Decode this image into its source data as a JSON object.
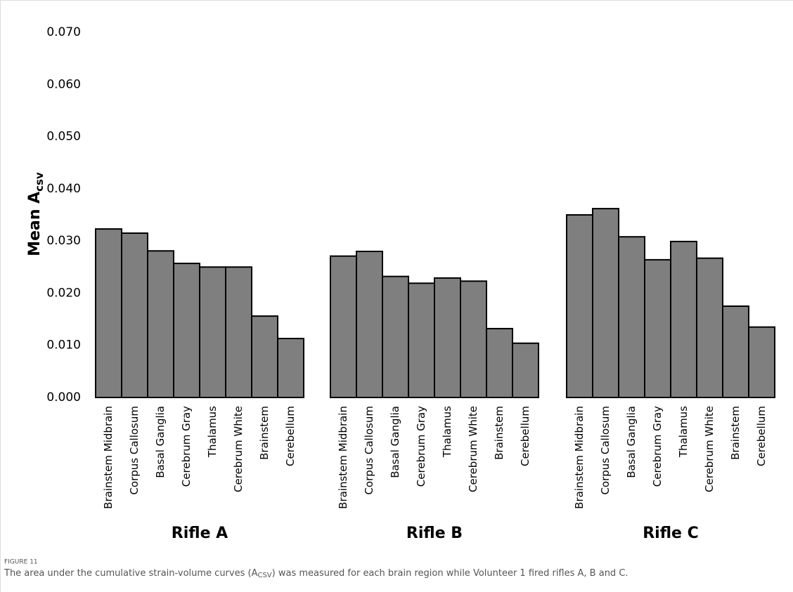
{
  "chart_data": {
    "type": "bar",
    "y_label": {
      "main": "Mean A",
      "sub": "csv"
    },
    "categories": [
      "Brainstem Midbrain",
      "Corpus Callosum",
      "Basal Ganglia",
      "Cerebrum Gray",
      "Thalamus",
      "Cerebrum White",
      "Brainstem",
      "Cerebellum"
    ],
    "series": [
      {
        "name": "Rifle A",
        "values": [
          0.0323,
          0.0315,
          0.0281,
          0.0257,
          0.025,
          0.025,
          0.0156,
          0.0113
        ]
      },
      {
        "name": "Rifle B",
        "values": [
          0.0271,
          0.028,
          0.0232,
          0.0219,
          0.0229,
          0.0223,
          0.0132,
          0.0104
        ]
      },
      {
        "name": "Rifle C",
        "values": [
          0.035,
          0.0362,
          0.0308,
          0.0264,
          0.0299,
          0.0267,
          0.0175,
          0.0135
        ]
      }
    ],
    "color": "#7f7f7f",
    "ylim": [
      0,
      0.07
    ],
    "yticks": [
      {
        "value": 0,
        "label": "0.000"
      },
      {
        "value": 0.01,
        "label": "0.010"
      },
      {
        "value": 0.02,
        "label": "0.020"
      },
      {
        "value": 0.03,
        "label": "0.030"
      },
      {
        "value": 0.04,
        "label": "0.040"
      },
      {
        "value": 0.05,
        "label": "0.050"
      },
      {
        "value": 0.06,
        "label": "0.060"
      },
      {
        "value": 0.07,
        "label": "0.070"
      }
    ],
    "caption": {
      "label": "FIGURE 11",
      "text_before": "The area under the cumulative strain-volume curves (A",
      "text_sub": "CSV",
      "text_after": ") was measured for each brain region while Volunteer 1 fired rifles A, B and C."
    }
  }
}
